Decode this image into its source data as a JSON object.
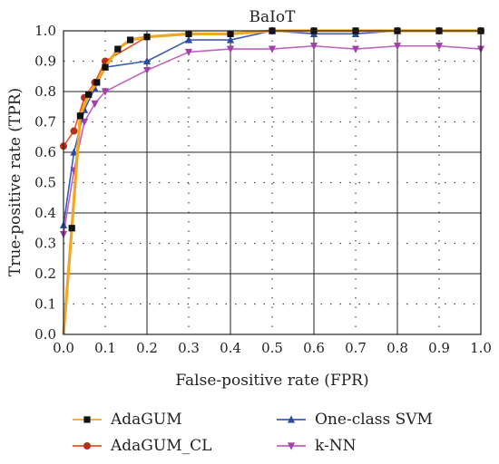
{
  "chart_data": {
    "type": "line",
    "title": "BaIoT",
    "xlabel": "False-positive rate (FPR)",
    "ylabel": "True-positive rate (TPR)",
    "xlim": [
      0,
      1
    ],
    "ylim": [
      0,
      1
    ],
    "xticks": [
      "0.0",
      "0.1",
      "0.2",
      "0.3",
      "0.4",
      "0.5",
      "0.6",
      "0.7",
      "0.8",
      "0.9",
      "1.0"
    ],
    "yticks": [
      "0.0",
      "0.1",
      "0.2",
      "0.3",
      "0.4",
      "0.5",
      "0.6",
      "0.7",
      "0.8",
      "0.9",
      "1.0"
    ],
    "grid": true,
    "legend_position": "bottom",
    "series": [
      {
        "name": "AdaGUM",
        "color": "#f2a623",
        "marker": "square",
        "marker_color": "#111111",
        "x": [
          0.0,
          0.02,
          0.04,
          0.06,
          0.08,
          0.1,
          0.13,
          0.16,
          0.2,
          0.3,
          0.4,
          0.5,
          0.6,
          0.7,
          0.8,
          0.9,
          1.0
        ],
        "y": [
          0.0,
          0.35,
          0.72,
          0.79,
          0.83,
          0.88,
          0.94,
          0.97,
          0.98,
          0.99,
          0.99,
          1.0,
          1.0,
          1.0,
          1.0,
          1.0,
          1.0
        ]
      },
      {
        "name": "AdaGUM_CL",
        "color": "#e8541c",
        "marker": "circle",
        "marker_color": "#b5301a",
        "x": [
          0.0,
          0.025,
          0.05,
          0.075,
          0.1,
          0.2,
          0.3,
          0.4,
          0.5,
          0.6,
          0.7,
          0.8,
          0.9,
          1.0
        ],
        "y": [
          0.62,
          0.67,
          0.78,
          0.83,
          0.9,
          0.98,
          0.99,
          0.99,
          1.0,
          1.0,
          1.0,
          1.0,
          1.0,
          1.0
        ]
      },
      {
        "name": "One-class SVM",
        "color": "#3b5bb5",
        "marker": "triangle-up",
        "marker_color": "#2c4aa8",
        "x": [
          0.0,
          0.025,
          0.05,
          0.075,
          0.1,
          0.2,
          0.3,
          0.4,
          0.5,
          0.6,
          0.7,
          0.8,
          0.9,
          1.0
        ],
        "y": [
          0.36,
          0.6,
          0.74,
          0.81,
          0.88,
          0.9,
          0.97,
          0.97,
          1.0,
          0.99,
          0.99,
          1.0,
          1.0,
          1.0
        ]
      },
      {
        "name": "k-NN",
        "color": "#c060c0",
        "marker": "triangle-down",
        "marker_color": "#a040a8",
        "x": [
          0.0,
          0.025,
          0.05,
          0.075,
          0.1,
          0.2,
          0.3,
          0.4,
          0.5,
          0.6,
          0.7,
          0.8,
          0.9,
          1.0
        ],
        "y": [
          0.33,
          0.54,
          0.7,
          0.76,
          0.8,
          0.87,
          0.93,
          0.94,
          0.94,
          0.95,
          0.94,
          0.95,
          0.95,
          0.94
        ]
      }
    ]
  }
}
